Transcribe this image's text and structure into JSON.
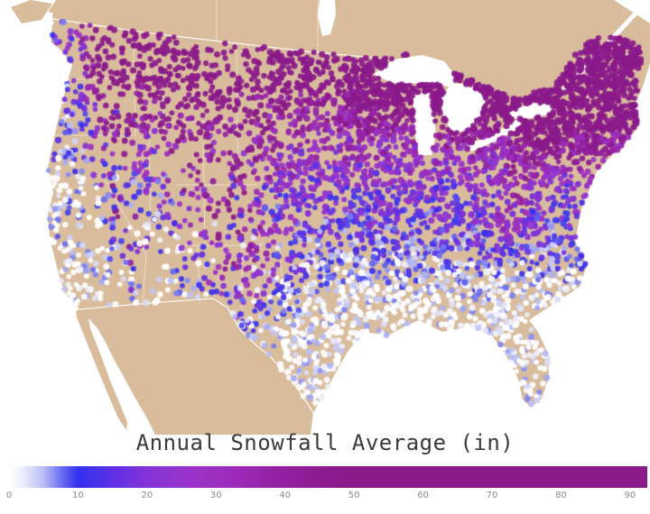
{
  "title": "Annual Snowfall Average (in)",
  "colors": {
    "background": "#ffffff",
    "land": "#d9bc9c",
    "water": "#ffffff",
    "border_line": "#ffffff",
    "title_color": "#3b3b3b",
    "tick_color": "#8c8c8c"
  },
  "colorbar": {
    "ticks": [
      "0",
      "10",
      "20",
      "30",
      "40",
      "50",
      "60",
      "70",
      "80",
      "90"
    ],
    "max_value": 92.5,
    "gradient_stops": [
      {
        "value": 0,
        "color": "#ffffff"
      },
      {
        "value": 2,
        "color": "#edeffb"
      },
      {
        "value": 5,
        "color": "#b7bdf4"
      },
      {
        "value": 8,
        "color": "#6163f1"
      },
      {
        "value": 10,
        "color": "#3431f0"
      },
      {
        "value": 13,
        "color": "#4b31ea"
      },
      {
        "value": 16,
        "color": "#6631e2"
      },
      {
        "value": 20,
        "color": "#8433d8"
      },
      {
        "value": 24,
        "color": "#9334cf"
      },
      {
        "value": 28,
        "color": "#9c31c5"
      },
      {
        "value": 33,
        "color": "#9b2ab8"
      },
      {
        "value": 38,
        "color": "#9422a6"
      },
      {
        "value": 44,
        "color": "#8d1c93"
      },
      {
        "value": 50,
        "color": "#8a1a8a"
      },
      {
        "value": 92.5,
        "color": "#8a1a8a"
      }
    ]
  },
  "chart_data": {
    "type": "scatter",
    "title": "Annual Snowfall Average (in)",
    "units": "inches",
    "colorbar_ticks": [
      0,
      10,
      20,
      30,
      40,
      50,
      60,
      70,
      80,
      90
    ],
    "colorbar_range": [
      0,
      92.5
    ],
    "description": "Dot map of US weather stations over a tan North America basemap, each dot colored by annual average snowfall (white ~0 in, blue ~10 in, violet ~20-30 in, dark magenta 50+ in).",
    "regional_pattern": [
      {
        "region": "Gulf Coast / Southeast / Florida",
        "snowfall_in": "0-3"
      },
      {
        "region": "Southern Plains / mid-South",
        "snowfall_in": "3-15"
      },
      {
        "region": "Central Plains / Ohio Valley",
        "snowfall_in": "10-25"
      },
      {
        "region": "Upper Midwest / Great Lakes snowbelt",
        "snowfall_in": "40-90"
      },
      {
        "region": "Northeast / New England / Appalachians",
        "snowfall_in": "40-90"
      },
      {
        "region": "Northern Plains / Montana / Dakotas",
        "snowfall_in": "35-65"
      },
      {
        "region": "Rockies / Sierra Nevada / Cascades",
        "snowfall_in": "30-90 (high variance)"
      },
      {
        "region": "Pacific Coast lowlands / California coast",
        "snowfall_in": "0-10"
      },
      {
        "region": "Desert Southwest / Great Basin",
        "snowfall_in": "0-12"
      }
    ]
  },
  "dots": {
    "seed": 987613,
    "count_main": 4500,
    "count_northeast": 450,
    "count_upper_midwest": 250,
    "radius_min": 2.7,
    "radius_max": 3.6,
    "opacity": 0.93
  }
}
